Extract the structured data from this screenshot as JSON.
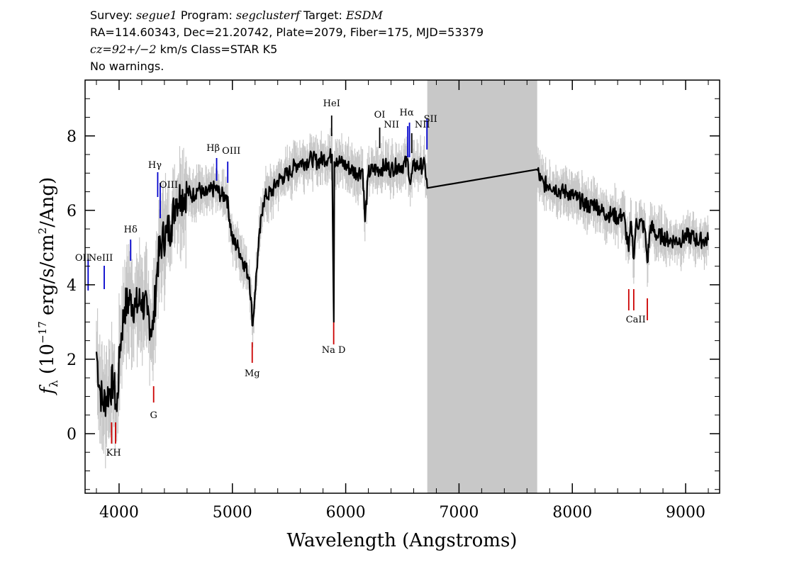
{
  "header": {
    "l1_a": "Survey: ",
    "l1_b": "segue1",
    "l1_c": " Program: ",
    "l1_d": "segclusterf",
    "l1_e": " Target: ",
    "l1_f": "ESDM",
    "l2": "RA=114.60343, Dec=21.20742, Plate=2079, Fiber=175, MJD=53379",
    "l3_a": "cz=92+/−2",
    "l3_b": " km/s Class=STAR K5",
    "l4": "No warnings."
  },
  "chart_data": {
    "type": "line",
    "xlabel": "Wavelength (Angstroms)",
    "ylabel_prefix": "f",
    "ylabel_sub": "λ",
    "ylabel_main": " (10",
    "ylabel_exp": "−17",
    "ylabel_rest": " erg/s/cm",
    "ylabel_exp2": "2",
    "ylabel_end": "/Ang)",
    "xlim": [
      3700,
      9300
    ],
    "ylim": [
      -1.6,
      9.5
    ],
    "xticks": [
      4000,
      5000,
      6000,
      7000,
      8000,
      9000
    ],
    "yticks": [
      0,
      2,
      4,
      6,
      8
    ],
    "masked_region": [
      6720,
      7690
    ],
    "colors": {
      "flux": "#000000",
      "error": "#c8c8c8",
      "emission": "#0000cc",
      "absorption": "#cc0000",
      "mask": "#c8c8c8"
    },
    "series": [
      {
        "x": [
          3800,
          3830,
          3860,
          3890,
          3920,
          3950,
          3980,
          4010,
          4050,
          4100,
          4150,
          4200,
          4250,
          4300,
          4340,
          4380,
          4420,
          4460,
          4500,
          4550,
          4600,
          4650,
          4700,
          4750,
          4800,
          4850,
          4900,
          4950,
          5000,
          5050,
          5100,
          5150,
          5180,
          5200,
          5230,
          5270,
          5300,
          5350,
          5400,
          5450,
          5500,
          5550,
          5600,
          5650,
          5700,
          5750,
          5800,
          5850,
          5880,
          5895,
          5900,
          5920,
          5950,
          6000,
          6050,
          6100,
          6150,
          6170,
          6200,
          6250,
          6300,
          6350,
          6400,
          6450,
          6500,
          6550,
          6570,
          6600,
          6650,
          6700,
          6720,
          7690,
          7720,
          7750,
          7800,
          7850,
          7900,
          7950,
          8000,
          8050,
          8100,
          8150,
          8200,
          8250,
          8300,
          8350,
          8400,
          8450,
          8498,
          8520,
          8542,
          8560,
          8600,
          8640,
          8662,
          8690,
          8750,
          8800,
          8850,
          8900,
          8950,
          9000,
          9050,
          9100,
          9150,
          9200
        ],
        "y": [
          2.2,
          1.2,
          0.8,
          1.0,
          1.2,
          1.4,
          0.6,
          2.4,
          3.4,
          3.6,
          3.4,
          3.6,
          3.2,
          2.8,
          4.6,
          5.2,
          5.4,
          5.6,
          6.3,
          6.4,
          6.5,
          6.4,
          6.6,
          6.4,
          6.5,
          6.6,
          6.4,
          6.4,
          5.2,
          5.0,
          4.6,
          4.2,
          2.9,
          3.8,
          5.0,
          6.2,
          6.4,
          6.5,
          6.8,
          6.9,
          7.0,
          7.2,
          7.3,
          7.3,
          7.4,
          7.3,
          7.4,
          7.4,
          7.5,
          3.0,
          7.3,
          7.4,
          7.3,
          7.2,
          7.1,
          7.0,
          7.1,
          5.7,
          7.0,
          7.1,
          7.1,
          7.2,
          7.1,
          7.2,
          7.2,
          7.3,
          6.7,
          7.2,
          7.2,
          7.2,
          6.6,
          7.1,
          6.8,
          6.7,
          6.7,
          6.6,
          6.5,
          6.5,
          6.4,
          6.3,
          6.2,
          6.1,
          6.2,
          6.0,
          5.9,
          5.9,
          5.8,
          5.9,
          4.9,
          5.7,
          4.7,
          5.6,
          5.7,
          5.5,
          4.6,
          5.6,
          5.3,
          5.3,
          5.2,
          5.2,
          5.2,
          5.3,
          5.3,
          5.2,
          5.2,
          5.2
        ]
      }
    ],
    "emission_lines": [
      {
        "name": "OII",
        "wave": 3727
      },
      {
        "name": "NeIII",
        "wave": 3869
      },
      {
        "name": "Hδ",
        "wave": 4102
      },
      {
        "name": "Hγ",
        "wave": 4341
      },
      {
        "name": "OIII",
        "wave": 4363
      },
      {
        "name": "Hβ",
        "wave": 4861
      },
      {
        "name": "OIII",
        "wave": 4959
      },
      {
        "name": "HeI",
        "wave": 5876
      },
      {
        "name": "OI",
        "wave": 6300
      },
      {
        "name": "NII",
        "wave": 6548
      },
      {
        "name": "Hα",
        "wave": 6563
      },
      {
        "name": "NII",
        "wave": 6583
      },
      {
        "name": "SII",
        "wave": 6717
      }
    ],
    "absorption_lines": [
      {
        "name": "K",
        "wave": 3934
      },
      {
        "name": "H",
        "wave": 3969
      },
      {
        "name": "G",
        "wave": 4305
      },
      {
        "name": "Mg",
        "wave": 5175
      },
      {
        "name": "Na D",
        "wave": 5894
      },
      {
        "name": "CaII",
        "wave": 8498
      },
      {
        "name": "CaII",
        "wave": 8542
      },
      {
        "name": "CaII",
        "wave": 8662
      }
    ]
  }
}
